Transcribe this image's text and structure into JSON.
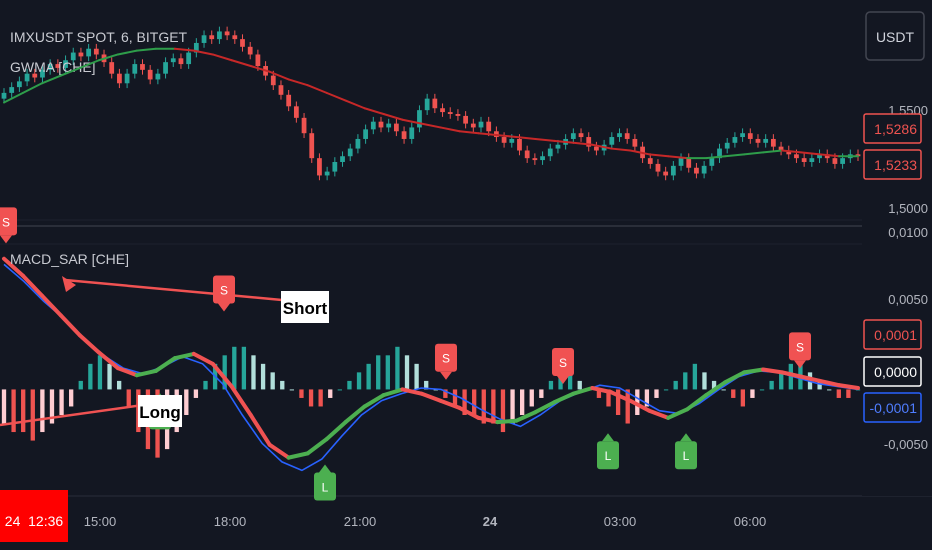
{
  "header": {
    "symbol_title": "IMXUSDT SPOT, 6, BITGET",
    "indicator_top": "GWMA [CHE]",
    "indicator_bottom": "MACD_SAR [CHE]",
    "currency_button": "USDT"
  },
  "colors": {
    "background": "#131722",
    "bull": "#26a69a",
    "bear": "#ef5350",
    "gwma_up": "#2e9d4a",
    "gwma_down": "#c62828",
    "sar_up": "#4caf50",
    "sar_down": "#f05252",
    "macd_line": "#2962ff",
    "pane_divider": "#2a2e39"
  },
  "price_axis": {
    "ticks": [
      "1,5500",
      "1,5000"
    ],
    "labels": [
      {
        "text": "1,5286",
        "color": "#ef5350"
      },
      {
        "text": "1,5233",
        "color": "#ef5350"
      }
    ]
  },
  "osc_axis": {
    "ticks": [
      "0,0100",
      "0,0050",
      "-0,0050"
    ],
    "labels": [
      {
        "text": "0,0001",
        "color": "#ef5350"
      },
      {
        "text": "0,0000",
        "color": "#ffffff"
      },
      {
        "text": "-0,0001",
        "color": "#2962ff"
      }
    ]
  },
  "time_axis": {
    "ticks": [
      "15:00",
      "18:00",
      "21:00",
      "24",
      "03:00",
      "06:00"
    ],
    "cursor_label": "24  12:36"
  },
  "chart_data": [
    {
      "type": "candlestick",
      "title": "IMXUSDT SPOT, 6, BITGET",
      "ylim": [
        1.495,
        1.595
      ],
      "close": [
        1.556,
        1.559,
        1.562,
        1.566,
        1.564,
        1.568,
        1.571,
        1.569,
        1.573,
        1.577,
        1.575,
        1.579,
        1.576,
        1.572,
        1.566,
        1.561,
        1.566,
        1.571,
        1.568,
        1.563,
        1.566,
        1.572,
        1.574,
        1.571,
        1.577,
        1.582,
        1.586,
        1.584,
        1.588,
        1.586,
        1.584,
        1.58,
        1.576,
        1.57,
        1.565,
        1.56,
        1.555,
        1.549,
        1.543,
        1.535,
        1.522,
        1.513,
        1.515,
        1.52,
        1.523,
        1.527,
        1.532,
        1.537,
        1.541,
        1.538,
        1.54,
        1.536,
        1.532,
        1.538,
        1.547,
        1.553,
        1.548,
        1.546,
        1.545,
        1.544,
        1.54,
        1.538,
        1.541,
        1.536,
        1.533,
        1.53,
        1.532,
        1.526,
        1.522,
        1.521,
        1.523,
        1.527,
        1.529,
        1.532,
        1.535,
        1.533,
        1.528,
        1.526,
        1.529,
        1.533,
        1.535,
        1.532,
        1.528,
        1.522,
        1.519,
        1.515,
        1.513,
        1.518,
        1.522,
        1.517,
        1.514,
        1.518,
        1.522,
        1.527,
        1.53,
        1.533,
        1.535,
        1.532,
        1.53,
        1.532,
        1.528,
        1.526,
        1.524,
        1.522,
        1.52,
        1.522,
        1.524,
        1.522,
        1.519,
        1.522,
        1.524,
        1.523
      ]
    },
    {
      "type": "line",
      "title": "GWMA [CHE]",
      "values": [
        1.551,
        1.556,
        1.561,
        1.565,
        1.569,
        1.573,
        1.576,
        1.578,
        1.579,
        1.579,
        1.578,
        1.576,
        1.573,
        1.57,
        1.567,
        1.563,
        1.56,
        1.556,
        1.552,
        1.548,
        1.545,
        1.542,
        1.54,
        1.538,
        1.536,
        1.535,
        1.534,
        1.533,
        1.532,
        1.531,
        1.53,
        1.529,
        1.527,
        1.526,
        1.524,
        1.523,
        1.522,
        1.522,
        1.523,
        1.524,
        1.525,
        1.526,
        1.525,
        1.524,
        1.523,
        1.523
      ]
    },
    {
      "type": "line",
      "title": "MACD_SAR [CHE]",
      "ylim": [
        -0.0075,
        0.0115
      ],
      "series": [
        {
          "values": [
            0.0088,
            0.0076,
            0.0062,
            0.005,
            0.0036,
            0.0024,
            0.0015,
            0.0011,
            0.0016,
            0.0023,
            0.0018,
            0.0004,
            -0.0018,
            -0.0038,
            -0.0051,
            -0.0057,
            -0.0049,
            -0.0033,
            -0.0018,
            -0.0008,
            -0.0003,
            0.0001,
            0.0,
            -0.0006,
            -0.0014,
            -0.0021,
            -0.0026,
            -0.0018,
            -0.0008,
            -0.0002,
            0.0003,
            0.0001,
            -0.0007,
            -0.0015,
            -0.0017,
            -0.001,
            0.0,
            0.0009,
            0.0013,
            0.0012,
            0.0008,
            0.0004,
            0.0002,
            0.0
          ]
        },
        {
          "values": [
            0.0092,
            0.008,
            0.0066,
            0.0052,
            0.0038,
            0.0026,
            0.0015,
            0.001,
            0.0013,
            0.0022,
            0.0025,
            0.0018,
            0.0002,
            -0.0018,
            -0.0039,
            -0.0048,
            -0.0045,
            -0.0035,
            -0.0023,
            -0.0012,
            -0.0004,
            0.0,
            -0.0003,
            -0.0008,
            -0.0013,
            -0.002,
            -0.0023,
            -0.0022,
            -0.0016,
            -0.0009,
            -0.0003,
            0.0001,
            -0.0002,
            -0.0008,
            -0.0015,
            -0.002,
            -0.0014,
            -0.0004,
            0.0005,
            0.0012,
            0.0014,
            0.0012,
            0.0009,
            0.0006,
            0.0003,
            0.0001
          ]
        },
        {
          "values": [
            -0.0004,
            -0.0005,
            -0.0005,
            -0.0006,
            -0.0005,
            -0.0004,
            -0.0003,
            -0.0002,
            0.0001,
            0.0003,
            0.0004,
            0.0003,
            0.0001,
            -0.0002,
            -0.0005,
            -0.0007,
            -0.0008,
            -0.0007,
            -0.0005,
            -0.0003,
            -0.0001,
            0.0001,
            0.0003,
            0.0004,
            0.0005,
            0.0005,
            0.0004,
            0.0003,
            0.0002,
            0.0001,
            0.0,
            -0.0001,
            -0.0002,
            -0.0002,
            -0.0001,
            0.0,
            0.0001,
            0.0002,
            0.0003,
            0.0004,
            0.0004,
            0.0005,
            0.0004,
            0.0003,
            0.0001,
            0.0,
            -0.0001,
            -0.0002,
            -0.0003,
            -0.0003,
            -0.0004,
            -0.0004,
            -0.0005,
            -0.0004,
            -0.0003,
            -0.0002,
            -0.0001,
            0.0001,
            0.0002,
            0.0002,
            0.0001,
            0.0,
            -0.0001,
            -0.0002,
            -0.0003,
            -0.0004,
            -0.0003,
            -0.0002,
            -0.0001,
            0.0,
            0.0001,
            0.0002,
            0.0003,
            0.0002,
            0.0001,
            0.0,
            -0.0001,
            -0.0002,
            -0.0001,
            0.0,
            0.0001,
            0.0002,
            0.0003,
            0.0003,
            0.0002,
            0.0001,
            0.0,
            -0.0001,
            -0.0001,
            0.0
          ]
        }
      ],
      "signals": [
        {
          "text": "S",
          "kind": "short",
          "value": 0.01
        },
        {
          "text": "S",
          "kind": "short",
          "value": 0.0052
        },
        {
          "text": "L",
          "kind": "long",
          "value": 0.0
        },
        {
          "text": "L",
          "kind": "long",
          "value": -0.005
        },
        {
          "text": "S",
          "kind": "short",
          "value": 0.0004
        },
        {
          "text": "L",
          "kind": "long",
          "value": -0.0028
        },
        {
          "text": "S",
          "kind": "short",
          "value": 0.0001
        },
        {
          "text": "L",
          "kind": "long",
          "value": -0.0028
        },
        {
          "text": "S",
          "kind": "short",
          "value": 0.0012
        }
      ],
      "annotations": [
        {
          "text": "Short"
        },
        {
          "text": "Long"
        }
      ]
    }
  ]
}
